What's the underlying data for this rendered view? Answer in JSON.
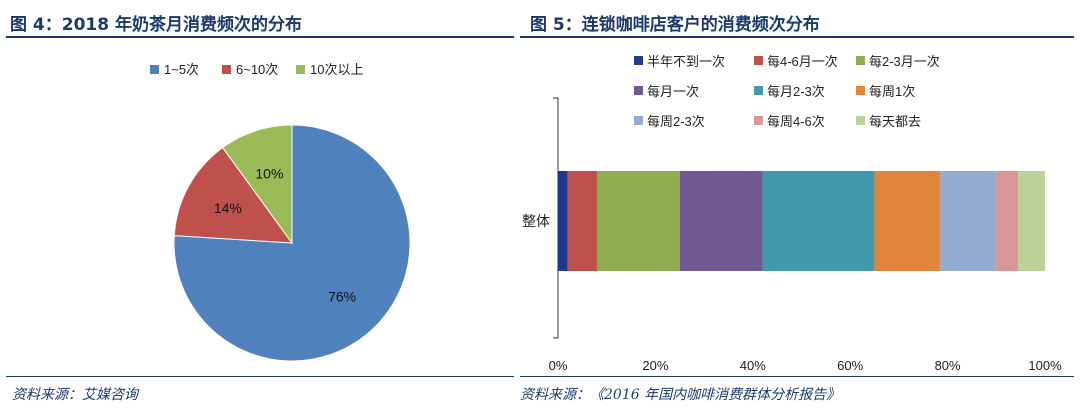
{
  "figures": {
    "left": {
      "title": "图 4：2018 年奶茶月消费频次的分布",
      "source": "资料来源：艾媒咨询"
    },
    "right": {
      "title": "图 5：连锁咖啡店客户的消费频次分布",
      "source": "资料来源：《2016 年国内咖啡消费群体分析报告》"
    }
  },
  "colors": {
    "accent": "#1b3a6b"
  },
  "chart_data": [
    {
      "type": "pie",
      "title": "2018 年奶茶月消费频次的分布",
      "legend_position": "top",
      "slices": [
        {
          "label": "1~5次",
          "value": 76,
          "value_label": "76%",
          "color": "#4f81bd"
        },
        {
          "label": "6~10次",
          "value": 14,
          "value_label": "14%",
          "color": "#c0504d"
        },
        {
          "label": "10次以上",
          "value": 10,
          "value_label": "10%",
          "color": "#9bbb59"
        }
      ]
    },
    {
      "type": "bar",
      "orientation": "horizontal",
      "stacked": true,
      "title": "连锁咖啡店客户的消费频次分布",
      "legend_position": "top",
      "categories": [
        "整体"
      ],
      "xlim": [
        0,
        100
      ],
      "x_ticks": [
        "0%",
        "20%",
        "40%",
        "60%",
        "80%",
        "100%"
      ],
      "series": [
        {
          "name": "半年不到一次",
          "values": [
            2
          ],
          "color": "#1f3a93"
        },
        {
          "name": "每4-6月一次",
          "values": [
            6
          ],
          "color": "#c0504d"
        },
        {
          "name": "每2-3月一次",
          "values": [
            17
          ],
          "color": "#8fac4f"
        },
        {
          "name": "每月一次",
          "values": [
            17
          ],
          "color": "#6f5894"
        },
        {
          "name": "每月2-3次",
          "values": [
            23
          ],
          "color": "#4199ad"
        },
        {
          "name": "每周1次",
          "values": [
            13.5
          ],
          "color": "#e3843b"
        },
        {
          "name": "每周2-3次",
          "values": [
            11.5
          ],
          "color": "#95acd0"
        },
        {
          "name": "每周4-6次",
          "values": [
            4.5
          ],
          "color": "#da9697"
        },
        {
          "name": "每天都去",
          "values": [
            5.5
          ],
          "color": "#bcd29a"
        }
      ]
    }
  ]
}
